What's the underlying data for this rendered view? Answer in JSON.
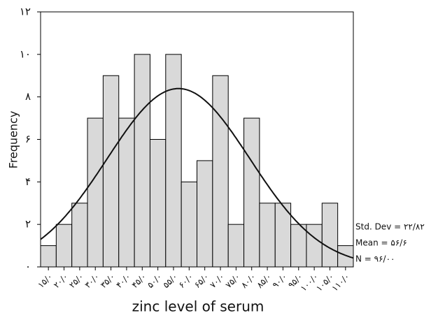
{
  "chart_data": {
    "type": "histogram",
    "x_label": "zinc level of serum",
    "y_label": "Frequency",
    "bins": [
      12.5,
      17.5,
      22.5,
      27.5,
      32.5,
      37.5,
      42.5,
      47.5,
      52.5,
      57.5,
      62.5,
      67.5,
      72.5,
      77.5,
      82.5,
      87.5,
      92.5,
      97.5,
      102.5,
      107.5,
      112.5
    ],
    "values": [
      1,
      2,
      3,
      7,
      9,
      7,
      10,
      6,
      10,
      4,
      5,
      9,
      2,
      7,
      3,
      3,
      2,
      2,
      3,
      1
    ],
    "color": "#d9d9d9",
    "xlim": [
      12.5,
      112.5
    ],
    "xticks": [
      {
        "value": 15,
        "label": "۱۵/۰"
      },
      {
        "value": 20,
        "label": "۲۰/۰"
      },
      {
        "value": 25,
        "label": "۲۵/۰"
      },
      {
        "value": 30,
        "label": "۳۰/۰"
      },
      {
        "value": 35,
        "label": "۳۵/۰"
      },
      {
        "value": 40,
        "label": "۴۰/۰"
      },
      {
        "value": 45,
        "label": "۴۵/۰"
      },
      {
        "value": 50,
        "label": "۵۰/۰"
      },
      {
        "value": 55,
        "label": "۵۵/۰"
      },
      {
        "value": 60,
        "label": "۶۰/۰"
      },
      {
        "value": 65,
        "label": "۶۵/۰"
      },
      {
        "value": 70,
        "label": "۷۰/۰"
      },
      {
        "value": 75,
        "label": "۷۵/۰"
      },
      {
        "value": 80,
        "label": "۸۰/۰"
      },
      {
        "value": 85,
        "label": "۸۵/۰"
      },
      {
        "value": 90,
        "label": "۹۰/۰"
      },
      {
        "value": 95,
        "label": "۹۵/۰"
      },
      {
        "value": 100,
        "label": "۱۰۰/۰"
      },
      {
        "value": 105,
        "label": "۱۰۵/۰"
      },
      {
        "value": 110,
        "label": "۱۱۰/۰"
      }
    ],
    "ylim": [
      0,
      12
    ],
    "yticks": [
      {
        "value": 0,
        "label": "۰"
      },
      {
        "value": 2,
        "label": "۲"
      },
      {
        "value": 4,
        "label": "۴"
      },
      {
        "value": 6,
        "label": "۶"
      },
      {
        "value": 8,
        "label": "۸"
      },
      {
        "value": 10,
        "label": "۱۰"
      },
      {
        "value": 12,
        "label": "۱۲"
      }
    ],
    "stats": [
      {
        "label": "Std. Dev = ۲۲/۸۲",
        "value": 22.82
      },
      {
        "label": "Mean = ۵۶/۶",
        "value": 56.6
      },
      {
        "label": "N = ۹۶/۰۰",
        "value": 96
      }
    ]
  }
}
